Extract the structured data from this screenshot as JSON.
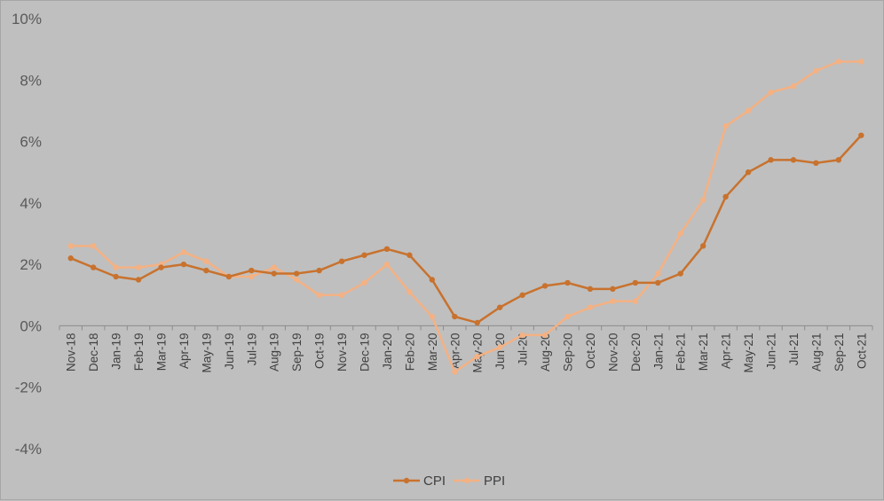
{
  "chart_data": {
    "type": "line",
    "categories": [
      "Nov-18",
      "Dec-18",
      "Jan-19",
      "Feb-19",
      "Mar-19",
      "Apr-19",
      "May-19",
      "Jun-19",
      "Jul-19",
      "Aug-19",
      "Sep-19",
      "Oct-19",
      "Nov-19",
      "Dec-19",
      "Jan-20",
      "Feb-20",
      "Mar-20",
      "Apr-20",
      "May-20",
      "Jun-20",
      "Jul-20",
      "Aug-20",
      "Sep-20",
      "Oct-20",
      "Nov-20",
      "Dec-20",
      "Jan-21",
      "Feb-21",
      "Mar-21",
      "Apr-21",
      "May-21",
      "Jun-21",
      "Jul-21",
      "Aug-21",
      "Sep-21",
      "Oct-21"
    ],
    "series": [
      {
        "name": "CPI",
        "color": "#c8722e",
        "values": [
          2.2,
          1.9,
          1.6,
          1.5,
          1.9,
          2.0,
          1.8,
          1.6,
          1.8,
          1.7,
          1.7,
          1.8,
          2.1,
          2.3,
          2.5,
          2.3,
          1.5,
          0.3,
          0.1,
          0.6,
          1.0,
          1.3,
          1.4,
          1.2,
          1.2,
          1.4,
          1.4,
          1.7,
          2.6,
          4.2,
          5.0,
          5.4,
          5.4,
          5.3,
          5.4,
          6.2
        ]
      },
      {
        "name": "PPI",
        "color": "#f4b183",
        "values": [
          2.6,
          2.6,
          1.9,
          1.9,
          2.0,
          2.4,
          2.1,
          1.6,
          1.6,
          1.9,
          1.5,
          1.0,
          1.0,
          1.4,
          2.0,
          1.1,
          0.3,
          -1.5,
          -1.0,
          -0.7,
          -0.3,
          -0.3,
          0.3,
          0.6,
          0.8,
          0.8,
          1.7,
          3.0,
          4.1,
          6.5,
          7.0,
          7.6,
          7.8,
          8.3,
          8.6,
          8.6
        ]
      }
    ],
    "y_ticks": [
      "10%",
      "8%",
      "6%",
      "4%",
      "2%",
      "0%",
      "-2%",
      "-4%"
    ],
    "ylim": [
      -4,
      10
    ],
    "y_step": 2,
    "grid": false,
    "legend_position": "bottom-center"
  }
}
